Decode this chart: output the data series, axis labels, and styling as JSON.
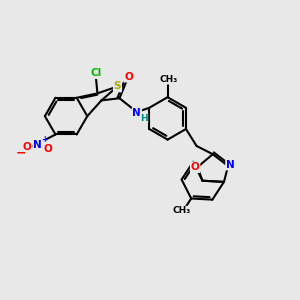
{
  "bg_color": "#e8e8e8",
  "bond_color": "#000000",
  "atom_colors": {
    "Cl": "#00bb00",
    "S": "#aaaa00",
    "N": "#0000ff",
    "O": "#ff0000",
    "H": "#008888",
    "C": "#000000"
  }
}
